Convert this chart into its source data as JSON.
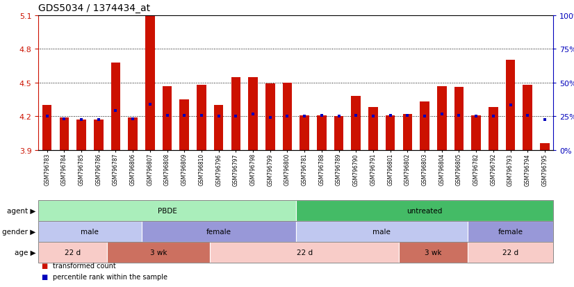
{
  "title": "GDS5034 / 1374434_at",
  "samples": [
    "GSM796783",
    "GSM796784",
    "GSM796785",
    "GSM796786",
    "GSM796787",
    "GSM796806",
    "GSM796807",
    "GSM796808",
    "GSM796809",
    "GSM796810",
    "GSM796796",
    "GSM796797",
    "GSM796798",
    "GSM796799",
    "GSM796800",
    "GSM796781",
    "GSM796788",
    "GSM796789",
    "GSM796790",
    "GSM796791",
    "GSM796801",
    "GSM796802",
    "GSM796803",
    "GSM796804",
    "GSM796805",
    "GSM796782",
    "GSM796792",
    "GSM796793",
    "GSM796794",
    "GSM796795"
  ],
  "bar_heights": [
    4.3,
    4.19,
    4.17,
    4.17,
    4.68,
    4.19,
    5.09,
    4.47,
    4.35,
    4.48,
    4.3,
    4.55,
    4.55,
    4.49,
    4.5,
    4.21,
    4.21,
    4.2,
    4.38,
    4.28,
    4.21,
    4.22,
    4.33,
    4.47,
    4.46,
    4.21,
    4.28,
    4.7,
    4.48,
    3.96
  ],
  "blue_markers": [
    4.2,
    4.18,
    4.17,
    4.17,
    4.25,
    4.18,
    4.31,
    4.21,
    4.21,
    4.21,
    4.2,
    4.2,
    4.22,
    4.19,
    4.2,
    4.2,
    4.21,
    4.2,
    4.21,
    4.2,
    4.21,
    4.21,
    4.2,
    4.22,
    4.21,
    4.2,
    4.2,
    4.3,
    4.21,
    4.17
  ],
  "ymin": 3.9,
  "ymax": 5.1,
  "y_ticks_left": [
    3.9,
    4.2,
    4.5,
    4.8,
    5.1
  ],
  "y_ticks_right": [
    0,
    25,
    50,
    75,
    100
  ],
  "dotted_lines": [
    4.2,
    4.5,
    4.8
  ],
  "bar_color": "#cc1100",
  "blue_color": "#0000bb",
  "agent_groups": [
    {
      "label": "PBDE",
      "start": 0,
      "end": 14,
      "color": "#aaeebb"
    },
    {
      "label": "untreated",
      "start": 15,
      "end": 29,
      "color": "#44bb66"
    }
  ],
  "gender_groups": [
    {
      "label": "male",
      "start": 0,
      "end": 5,
      "color": "#c0c8f0"
    },
    {
      "label": "female",
      "start": 6,
      "end": 14,
      "color": "#9898d8"
    },
    {
      "label": "male",
      "start": 15,
      "end": 24,
      "color": "#c0c8f0"
    },
    {
      "label": "female",
      "start": 25,
      "end": 29,
      "color": "#9898d8"
    }
  ],
  "age_groups": [
    {
      "label": "22 d",
      "start": 0,
      "end": 3,
      "color": "#f8ccc8"
    },
    {
      "label": "3 wk",
      "start": 4,
      "end": 9,
      "color": "#cc7060"
    },
    {
      "label": "22 d",
      "start": 10,
      "end": 20,
      "color": "#f8ccc8"
    },
    {
      "label": "3 wk",
      "start": 21,
      "end": 24,
      "color": "#cc7060"
    },
    {
      "label": "22 d",
      "start": 25,
      "end": 29,
      "color": "#f8ccc8"
    }
  ],
  "legend_items": [
    {
      "label": "transformed count",
      "color": "#cc1100"
    },
    {
      "label": "percentile rank within the sample",
      "color": "#0000bb"
    }
  ]
}
